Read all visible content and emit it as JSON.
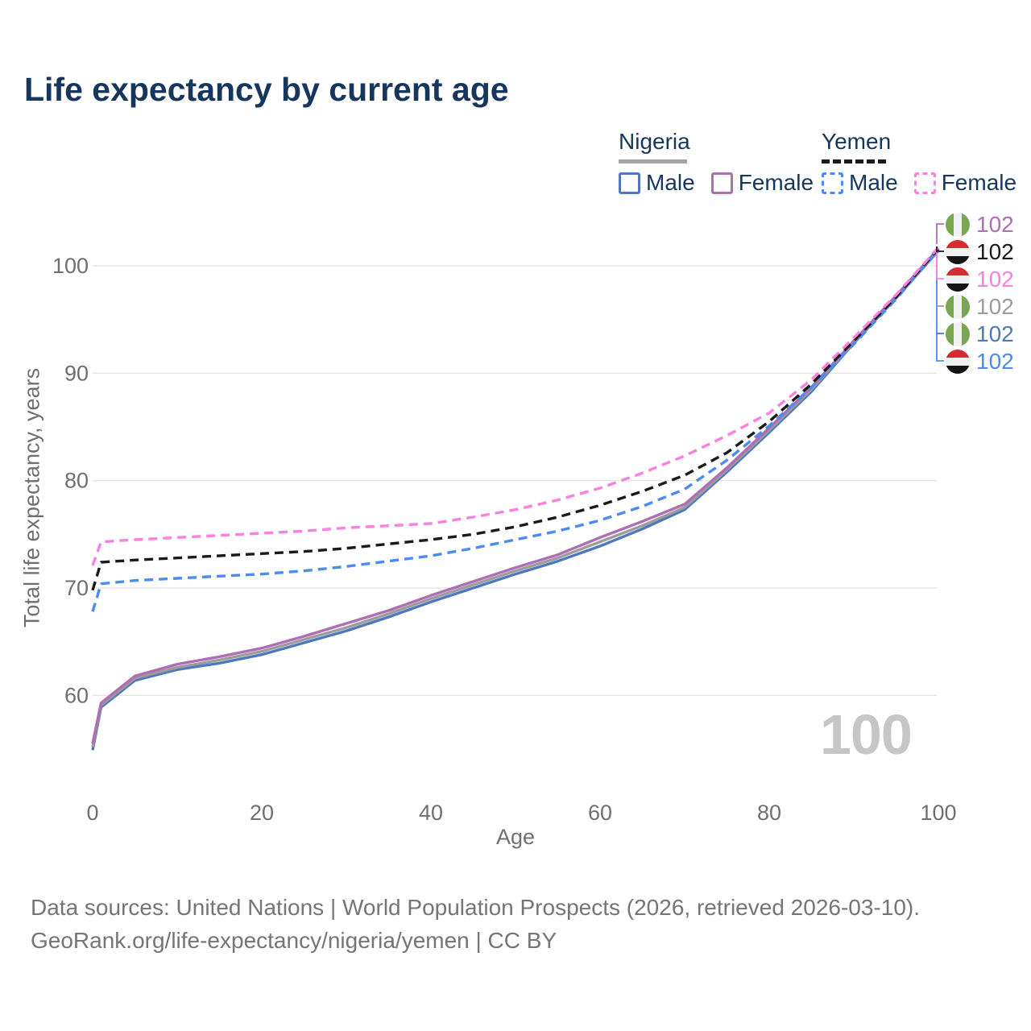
{
  "title": "Life expectancy by current age",
  "legend": {
    "nigeria": {
      "label": "Nigeria",
      "male": "Male",
      "female": "Female",
      "line_style": "solid"
    },
    "yemen": {
      "label": "Yemen",
      "male": "Male",
      "female": "Female",
      "line_style": "dashed"
    }
  },
  "axes": {
    "y": {
      "title": "Total life expectancy, years"
    },
    "x": {
      "title": "Age"
    }
  },
  "watermark": "100",
  "colors": {
    "title_navy": "#16365d",
    "axis_gray": "#6f6f6f",
    "grid_gray": "#e6e6e6",
    "watermark_gray": "#c6c6c6",
    "footer_gray": "#757575",
    "nigeria_rule_gray": "#a3a3a3",
    "yemen_rule_black": "#1a1a1a",
    "flag_nigeria_green": "#79a651",
    "flag_yemen_red": "#d62b31",
    "flag_yemen_black": "#141414"
  },
  "end_labels": [
    {
      "series": "Nigeria Female",
      "flag": "nigeria",
      "value": "102",
      "color": "#af6db3"
    },
    {
      "series": "Yemen Both sexes",
      "flag": "yemen",
      "value": "102",
      "color": "#1a1a1a"
    },
    {
      "series": "Yemen Female",
      "flag": "yemen",
      "value": "102",
      "color": "#fd80e1"
    },
    {
      "series": "Nigeria Both sexes",
      "flag": "nigeria",
      "value": "102",
      "color": "#9c9c9c"
    },
    {
      "series": "Nigeria Male",
      "flag": "nigeria",
      "value": "102",
      "color": "#4d78bd"
    },
    {
      "series": "Yemen Male",
      "flag": "yemen",
      "value": "102",
      "color": "#4b8bf4"
    }
  ],
  "footer": {
    "line1": "Data sources: United Nations | World Population Prospects (2026, retrieved 2026-03-10).",
    "line2": "GeoRank.org/life-expectancy/nigeria/yemen | CC BY"
  },
  "chart_data": {
    "type": "line",
    "title": "Life expectancy by current age",
    "xlabel": "Age",
    "ylabel": "Total life expectancy, years",
    "xticks": [
      0,
      20,
      40,
      60,
      80,
      100
    ],
    "yticks": [
      60,
      70,
      80,
      90,
      100
    ],
    "xlim": [
      0,
      100
    ],
    "ylim": [
      53,
      103
    ],
    "grid": "horizontal",
    "legend_position": "top-right",
    "ages": [
      0,
      1,
      5,
      10,
      15,
      20,
      25,
      30,
      35,
      40,
      45,
      50,
      55,
      60,
      65,
      70,
      75,
      80,
      85,
      90,
      95,
      100
    ],
    "series": [
      {
        "key": "nigeria_male",
        "name": "Nigeria Male",
        "country": "Nigeria",
        "sex": "Male",
        "style": "solid",
        "color": "#4d78bd",
        "values": [
          54.9,
          58.9,
          61.4,
          62.4,
          63.0,
          63.8,
          64.9,
          66.0,
          67.3,
          68.7,
          70.0,
          71.3,
          72.5,
          73.9,
          75.5,
          77.3,
          80.8,
          84.5,
          88.3,
          92.8,
          97.0,
          101.4
        ]
      },
      {
        "key": "nigeria_both",
        "name": "Nigeria Both sexes",
        "country": "Nigeria",
        "sex": "Both sexes",
        "style": "solid",
        "color": "#9c9c9c",
        "values": [
          55.2,
          59.1,
          61.6,
          62.6,
          63.3,
          64.1,
          65.2,
          66.3,
          67.6,
          69.0,
          70.3,
          71.6,
          72.8,
          74.3,
          75.8,
          77.5,
          81.0,
          84.7,
          88.5,
          92.9,
          97.1,
          101.5
        ]
      },
      {
        "key": "nigeria_female",
        "name": "Nigeria Female",
        "country": "Nigeria",
        "sex": "Female",
        "style": "solid",
        "color": "#af6db3",
        "values": [
          55.5,
          59.3,
          61.8,
          62.9,
          63.6,
          64.4,
          65.5,
          66.7,
          67.9,
          69.3,
          70.6,
          71.9,
          73.1,
          74.7,
          76.2,
          77.8,
          81.2,
          84.9,
          88.7,
          93.0,
          97.2,
          101.6
        ]
      },
      {
        "key": "yemen_male",
        "name": "Yemen Male",
        "country": "Yemen",
        "sex": "Male",
        "style": "dashed",
        "color": "#4b8bf4",
        "values": [
          67.8,
          70.4,
          70.7,
          70.9,
          71.1,
          71.3,
          71.6,
          72.0,
          72.5,
          73.0,
          73.7,
          74.5,
          75.3,
          76.3,
          77.6,
          79.2,
          81.9,
          85.1,
          88.7,
          92.7,
          96.9,
          101.5
        ]
      },
      {
        "key": "yemen_both",
        "name": "Yemen Both sexes",
        "country": "Yemen",
        "sex": "Both sexes",
        "style": "dashed",
        "color": "#1a1a1a",
        "values": [
          69.8,
          72.4,
          72.6,
          72.8,
          73.0,
          73.2,
          73.4,
          73.7,
          74.1,
          74.5,
          75.0,
          75.7,
          76.6,
          77.7,
          79.0,
          80.5,
          82.6,
          85.5,
          89.0,
          93.0,
          97.1,
          101.6
        ]
      },
      {
        "key": "yemen_female",
        "name": "Yemen Female",
        "country": "Yemen",
        "sex": "Female",
        "style": "dashed",
        "color": "#fd80e1",
        "values": [
          72.1,
          74.3,
          74.5,
          74.7,
          74.9,
          75.1,
          75.3,
          75.6,
          75.8,
          76.0,
          76.6,
          77.3,
          78.2,
          79.3,
          80.7,
          82.3,
          84.2,
          86.3,
          89.4,
          93.3,
          97.3,
          101.7
        ]
      }
    ],
    "end_value_label": "102"
  }
}
